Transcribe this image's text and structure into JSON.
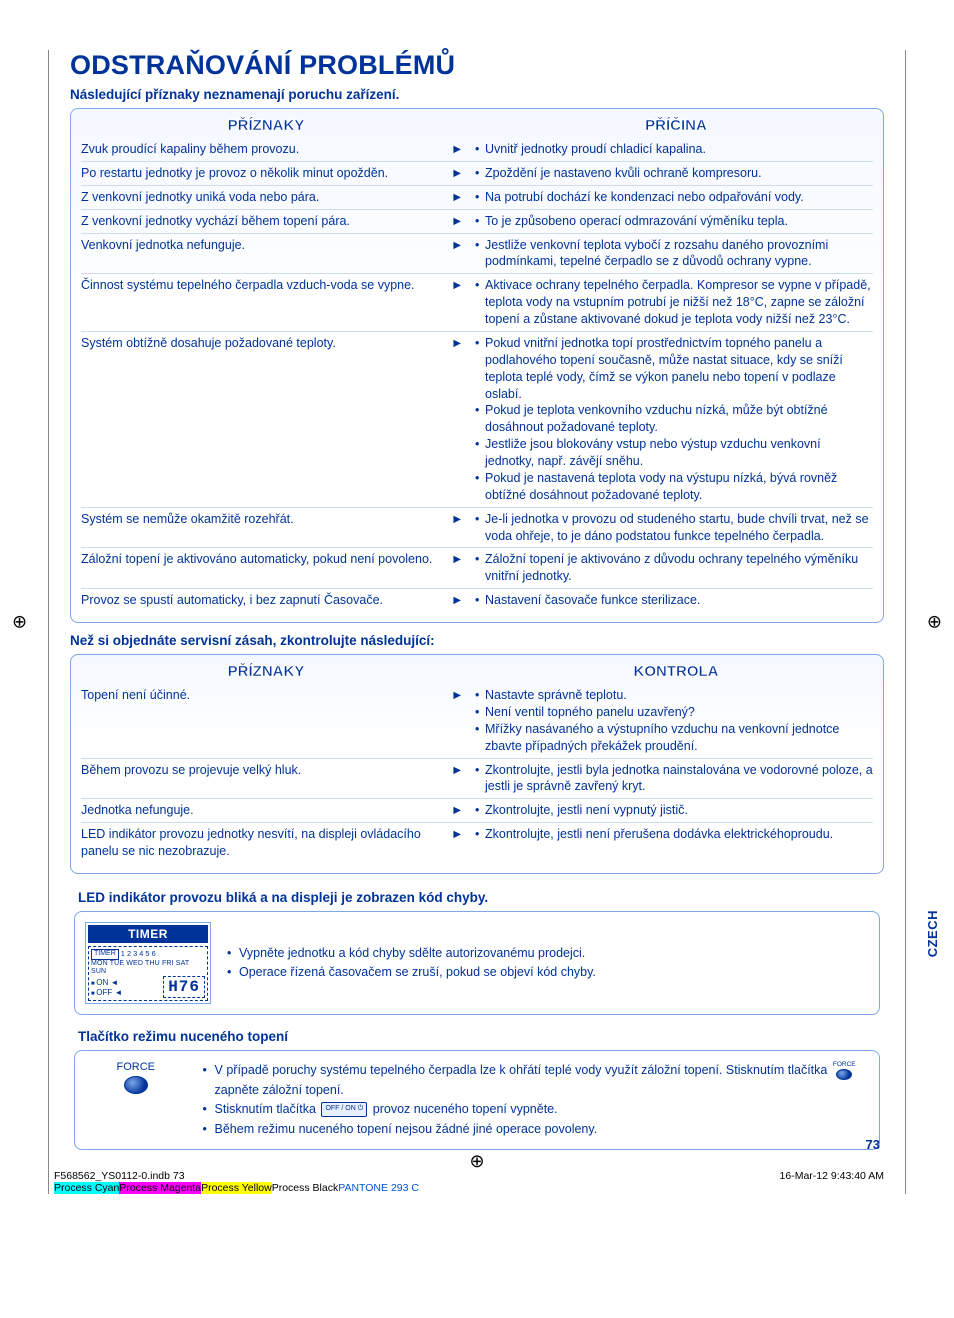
{
  "colors": {
    "brand": "#003399",
    "border": "#7da7e8",
    "row_sep": "#cfdcf0",
    "bg_grad_top": "#f4f8ff"
  },
  "title": "ODSTRAŇOVÁNÍ PROBLÉMŮ",
  "subtitle1": "Následující příznaky neznamenají poruchu zařízení.",
  "headers": {
    "symptoms": "PŘÍZNAKY",
    "cause": "PŘÍČINA",
    "check": "KONTROLA"
  },
  "arrow": "►",
  "table1": [
    {
      "s": "Zvuk proudící kapaliny během provozu.",
      "c": [
        "Uvnitř jednotky proudí chladicí kapalina."
      ]
    },
    {
      "s": "Po restartu jednotky je provoz o několik minut opožděn.",
      "c": [
        "Zpoždění je nastaveno kvůli ochraně kompresoru."
      ]
    },
    {
      "s": "Z venkovní jednotky uniká voda nebo pára.",
      "c": [
        "Na potrubí dochází ke kondenzaci nebo odpařování vody."
      ]
    },
    {
      "s": "Z venkovní jednotky vychází během topení pára.",
      "c": [
        "To je způsobeno operací odmrazování výměníku tepla."
      ]
    },
    {
      "s": "Venkovní jednotka nefunguje.",
      "c": [
        "Jestliže venkovní teplota vybočí z rozsahu daného provozními podmínkami, tepelné čerpadlo se z důvodů ochrany vypne."
      ]
    },
    {
      "s": "Činnost systému tepelného čerpadla vzduch-voda se vypne.",
      "c": [
        "Aktivace ochrany tepelného čerpadla. Kompresor se vypne v případě, teplota vody na vstupním potrubí je nižší než 18°C, zapne se záložní topení a zůstane aktivované dokud je teplota vody nižší než 23°C."
      ]
    },
    {
      "s": "Systém obtížně dosahuje požadované teploty.",
      "c": [
        "Pokud vnitřní jednotka topí prostřednictvím topného panelu a podlahového topení současně, může nastat situace, kdy se sníží teplota teplé vody, čímž se výkon panelu nebo topení v podlaze oslabí.",
        "Pokud je teplota venkovního vzduchu nízká, může být obtížné dosáhnout požadované teploty.",
        "Jestliže jsou blokovány vstup nebo výstup vzduchu venkovní jednotky, např. závějí sněhu.",
        "Pokud je nastavená teplota vody na výstupu nízká, bývá rovněž obtížné dosáhnout požadované teploty."
      ]
    },
    {
      "s": "Systém se nemůže okamžitě rozehřát.",
      "c": [
        "Je-li jednotka v provozu od studeného startu, bude chvíli trvat, než se voda ohřeje, to je dáno podstatou funkce tepelného čerpadla."
      ]
    },
    {
      "s": "Záložní topení je aktivováno automaticky, pokud není povoleno.",
      "c": [
        "Záložní topení je aktivováno z důvodu ochrany tepelného výměníku vnitřní jednotky."
      ]
    },
    {
      "s": "Provoz se spustí automaticky, i bez zapnutí Časovače.",
      "c": [
        "Nastavení časovače funkce sterilizace."
      ]
    }
  ],
  "subtitle2": "Než si objednáte servisní zásah, zkontrolujte následující:",
  "table2": [
    {
      "s": "Topení není účinné.",
      "c": [
        "Nastavte správně teplotu.",
        "Není ventil topného panelu uzavřený?",
        "Mřížky nasávaného a výstupního vzduchu na venkovní jednotce zbavte případných překážek proudění."
      ]
    },
    {
      "s": "Během provozu se projevuje velký hluk.",
      "c": [
        "Zkontrolujte, jestli byla jednotka nainstalována ve vodorovné poloze, a jestli je správně zavřený kryt."
      ]
    },
    {
      "s": "Jednotka nefunguje.",
      "c": [
        "Zkontrolujte, jestli není vypnutý jistič."
      ]
    },
    {
      "s": "LED indikátor provozu jednotky nesvítí, na displeji ovládacího panelu se nic nezobrazuje.",
      "c": [
        "Zkontrolujte, jestli není přerušena dodávka elektrickéhoproudu."
      ]
    }
  ],
  "section_led_title": "LED indikátor provozu bliká a na displeji je zobrazen kód chyby.",
  "display": {
    "timer": "TIMER",
    "timer_lbl": "TIMER",
    "days_num": "1 2 3 4 5 6",
    "days": "MON TUE WED THU FRI SAT SUN",
    "on": "ON ◄",
    "off": "OFF ◄",
    "code": "H76"
  },
  "led_bullets": [
    "Vypněte jednotku a kód chyby sdělte autorizovanému prodejci.",
    "Operace řízená časovačem se zruší, pokud se objeví kód chyby."
  ],
  "force_title": "Tlačítko režimu nuceného topení",
  "force_panel_label": "FORCE",
  "force_bullets_pre": "V případě poruchy systému tepelného čerpadla lze k ohřátí teplé vody využít záložní topení. Stisknutím tlačítka",
  "force_bullets_post": "zapněte záložní topení.",
  "force_b2_pre": "Stisknutím tlačítka",
  "force_b2_post": "provoz nuceného topení vypněte.",
  "force_b3": "Během režimu nuceného topení nejsou žádné jiné operace povoleny.",
  "offon_label": "OFF / ON ⏻",
  "side_tab": "CZECH",
  "page_number": "73",
  "footer": {
    "file": "F568562_YS0112-0.indb   73",
    "date": "16-Mar-12   9:43:40 AM",
    "proc": {
      "cy": "Process Cyan",
      "mg": "Process Magenta",
      "yl": "Process Yellow",
      "bk": "Process Black",
      "pn": "PANTONE 293 C"
    }
  }
}
